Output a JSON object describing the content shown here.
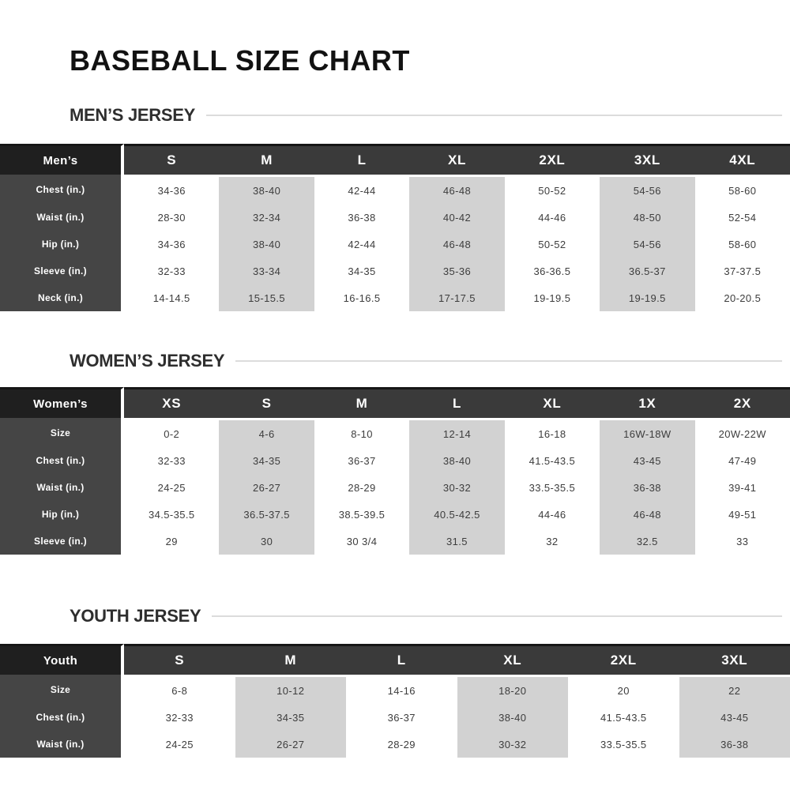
{
  "title": "BASEBALL SIZE CHART",
  "colors": {
    "corner_bg": "#1f1f1f",
    "header_bg": "#3a3a3a",
    "label_bg": "#454545",
    "shaded_column_bg": "#d2d2d2",
    "data_text": "#3d3d3d",
    "divider": "#dcdcdc"
  },
  "sections": [
    {
      "id": "mens",
      "heading": "MEN’S JERSEY",
      "corner_label": "Men’s",
      "sizes": [
        "S",
        "M",
        "L",
        "XL",
        "2XL",
        "3XL",
        "4XL"
      ],
      "rows": [
        {
          "label": "Chest (in.)",
          "values": [
            "34-36",
            "38-40",
            "42-44",
            "46-48",
            "50-52",
            "54-56",
            "58-60"
          ]
        },
        {
          "label": "Waist (in.)",
          "values": [
            "28-30",
            "32-34",
            "36-38",
            "40-42",
            "44-46",
            "48-50",
            "52-54"
          ]
        },
        {
          "label": "Hip (in.)",
          "values": [
            "34-36",
            "38-40",
            "42-44",
            "46-48",
            "50-52",
            "54-56",
            "58-60"
          ]
        },
        {
          "label": "Sleeve (in.)",
          "values": [
            "32-33",
            "33-34",
            "34-35",
            "35-36",
            "36-36.5",
            "36.5-37",
            "37-37.5"
          ]
        },
        {
          "label": "Neck (in.)",
          "values": [
            "14-14.5",
            "15-15.5",
            "16-16.5",
            "17-17.5",
            "19-19.5",
            "19-19.5",
            "20-20.5"
          ]
        }
      ]
    },
    {
      "id": "womens",
      "heading": "WOMEN’S JERSEY",
      "corner_label": "Women’s",
      "sizes": [
        "XS",
        "S",
        "M",
        "L",
        "XL",
        "1X",
        "2X"
      ],
      "rows": [
        {
          "label": "Size",
          "values": [
            "0-2",
            "4-6",
            "8-10",
            "12-14",
            "16-18",
            "16W-18W",
            "20W-22W"
          ]
        },
        {
          "label": "Chest (in.)",
          "values": [
            "32-33",
            "34-35",
            "36-37",
            "38-40",
            "41.5-43.5",
            "43-45",
            "47-49"
          ]
        },
        {
          "label": "Waist (in.)",
          "values": [
            "24-25",
            "26-27",
            "28-29",
            "30-32",
            "33.5-35.5",
            "36-38",
            "39-41"
          ]
        },
        {
          "label": "Hip (in.)",
          "values": [
            "34.5-35.5",
            "36.5-37.5",
            "38.5-39.5",
            "40.5-42.5",
            "44-46",
            "46-48",
            "49-51"
          ]
        },
        {
          "label": "Sleeve (in.)",
          "values": [
            "29",
            "30",
            "30 3/4",
            "31.5",
            "32",
            "32.5",
            "33"
          ]
        }
      ]
    },
    {
      "id": "youth",
      "heading": "YOUTH JERSEY",
      "corner_label": "Youth",
      "sizes": [
        "S",
        "M",
        "L",
        "XL",
        "2XL",
        "3XL"
      ],
      "rows": [
        {
          "label": "Size",
          "values": [
            "6-8",
            "10-12",
            "14-16",
            "18-20",
            "20",
            "22"
          ]
        },
        {
          "label": "Chest (in.)",
          "values": [
            "32-33",
            "34-35",
            "36-37",
            "38-40",
            "41.5-43.5",
            "43-45"
          ]
        },
        {
          "label": "Waist (in.)",
          "values": [
            "24-25",
            "26-27",
            "28-29",
            "30-32",
            "33.5-35.5",
            "36-38"
          ]
        }
      ]
    }
  ]
}
